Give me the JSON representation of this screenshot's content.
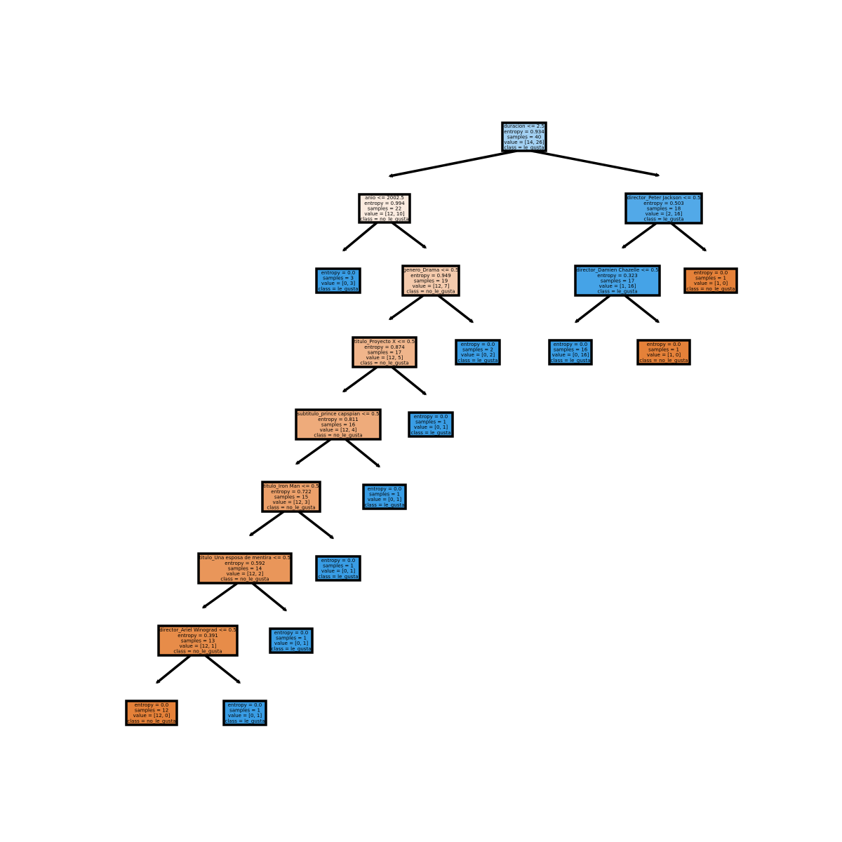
{
  "tree": {
    "nodes": [
      {
        "id": "root",
        "lines": [
          "duracion <= 2.5",
          "entropy = 0.934",
          "samples = 40",
          "value = [14, 26]",
          "class = le_gusta"
        ],
        "fill": "#a3d1f3"
      },
      {
        "id": "n1",
        "lines": [
          "anio <= 2002.5",
          "entropy = 0.994",
          "samples = 22",
          "value = [12, 10]",
          "class = no_le_gusta"
        ],
        "fill": "#fbebdf"
      },
      {
        "id": "n2",
        "lines": [
          "entropy = 0.0",
          "samples = 3",
          "value = [0, 3]",
          "class = le_gusta"
        ],
        "fill": "#399de5"
      },
      {
        "id": "n3",
        "lines": [
          "genero_Drama <= 0.5",
          "entropy = 0.949",
          "samples = 19",
          "value = [12, 7]",
          "class = no_le_gusta"
        ],
        "fill": "#f4caac"
      },
      {
        "id": "n4",
        "lines": [
          "titulo_Proyecto X <= 0.5",
          "entropy = 0.874",
          "samples = 17",
          "value = [12, 5]",
          "class = no_le_gusta"
        ],
        "fill": "#f0b58b"
      },
      {
        "id": "n5",
        "lines": [
          "subtitulo_prince capspian <= 0.5",
          "entropy = 0.811",
          "samples = 16",
          "value = [12, 4]",
          "class = no_le_gusta"
        ],
        "fill": "#eeab7b"
      },
      {
        "id": "n6",
        "lines": [
          "titulo_Iron Man <= 0.5",
          "entropy = 0.722",
          "samples = 15",
          "value = [12, 3]",
          "class = no_le_gusta"
        ],
        "fill": "#eca06a"
      },
      {
        "id": "n7",
        "lines": [
          "titulo_Una esposa de mentira <= 0.5",
          "entropy = 0.592",
          "samples = 14",
          "value = [12, 2]",
          "class = no_le_gusta"
        ],
        "fill": "#e9965a"
      },
      {
        "id": "n8",
        "lines": [
          "director_Ariel Winograd <= 0.5",
          "entropy = 0.391",
          "samples = 13",
          "value = [12, 1]",
          "class = no_le_gusta"
        ],
        "fill": "#e78c49"
      },
      {
        "id": "n9",
        "lines": [
          "entropy = 0.0",
          "samples = 12",
          "value = [12, 0]",
          "class = no_le_gusta"
        ],
        "fill": "#e58139"
      },
      {
        "id": "n10",
        "lines": [
          "entropy = 0.0",
          "samples = 1",
          "value = [0, 1]",
          "class = le_gusta"
        ],
        "fill": "#399de5"
      },
      {
        "id": "n11",
        "lines": [
          "entropy = 0.0",
          "samples = 1",
          "value = [0, 1]",
          "class = le_gusta"
        ],
        "fill": "#399de5"
      },
      {
        "id": "n12",
        "lines": [
          "entropy = 0.0",
          "samples = 1",
          "value = [0, 1]",
          "class = le_gusta"
        ],
        "fill": "#399de5"
      },
      {
        "id": "n13",
        "lines": [
          "entropy = 0.0",
          "samples = 1",
          "value = [0, 1]",
          "class = le_gusta"
        ],
        "fill": "#399de5"
      },
      {
        "id": "n14",
        "lines": [
          "entropy = 0.0",
          "samples = 1",
          "value = [0, 1]",
          "class = le_gusta"
        ],
        "fill": "#399de5"
      },
      {
        "id": "n15",
        "lines": [
          "entropy = 0.0",
          "samples = 2",
          "value = [0, 2]",
          "class = le_gusta"
        ],
        "fill": "#399de5"
      },
      {
        "id": "n16",
        "lines": [
          "director_Peter Jackson <= 0.5",
          "entropy = 0.503",
          "samples = 18",
          "value = [2, 16]",
          "class = le_gusta"
        ],
        "fill": "#52a9e8"
      },
      {
        "id": "n17",
        "lines": [
          "director_Damien Chazelle <= 0.5",
          "entropy = 0.323",
          "samples = 17",
          "value = [1, 16]",
          "class = le_gusta"
        ],
        "fill": "#45a3e7"
      },
      {
        "id": "n18",
        "lines": [
          "entropy = 0.0",
          "samples = 16",
          "value = [0, 16]",
          "class = le_gusta"
        ],
        "fill": "#399de5"
      },
      {
        "id": "n19",
        "lines": [
          "entropy = 0.0",
          "samples = 1",
          "value = [1, 0]",
          "class = no_le_gusta"
        ],
        "fill": "#e58139"
      },
      {
        "id": "n20",
        "lines": [
          "entropy = 0.0",
          "samples = 1",
          "value = [1, 0]",
          "class = no_le_gusta"
        ],
        "fill": "#e58139"
      }
    ],
    "edges": [
      [
        "root",
        "n1"
      ],
      [
        "root",
        "n16"
      ],
      [
        "n1",
        "n2"
      ],
      [
        "n1",
        "n3"
      ],
      [
        "n3",
        "n4"
      ],
      [
        "n3",
        "n15"
      ],
      [
        "n4",
        "n5"
      ],
      [
        "n4",
        "n14"
      ],
      [
        "n5",
        "n6"
      ],
      [
        "n5",
        "n13"
      ],
      [
        "n6",
        "n7"
      ],
      [
        "n6",
        "n12"
      ],
      [
        "n7",
        "n8"
      ],
      [
        "n7",
        "n11"
      ],
      [
        "n8",
        "n9"
      ],
      [
        "n8",
        "n10"
      ],
      [
        "n16",
        "n17"
      ],
      [
        "n16",
        "n20"
      ],
      [
        "n17",
        "n18"
      ],
      [
        "n17",
        "n19"
      ]
    ]
  }
}
